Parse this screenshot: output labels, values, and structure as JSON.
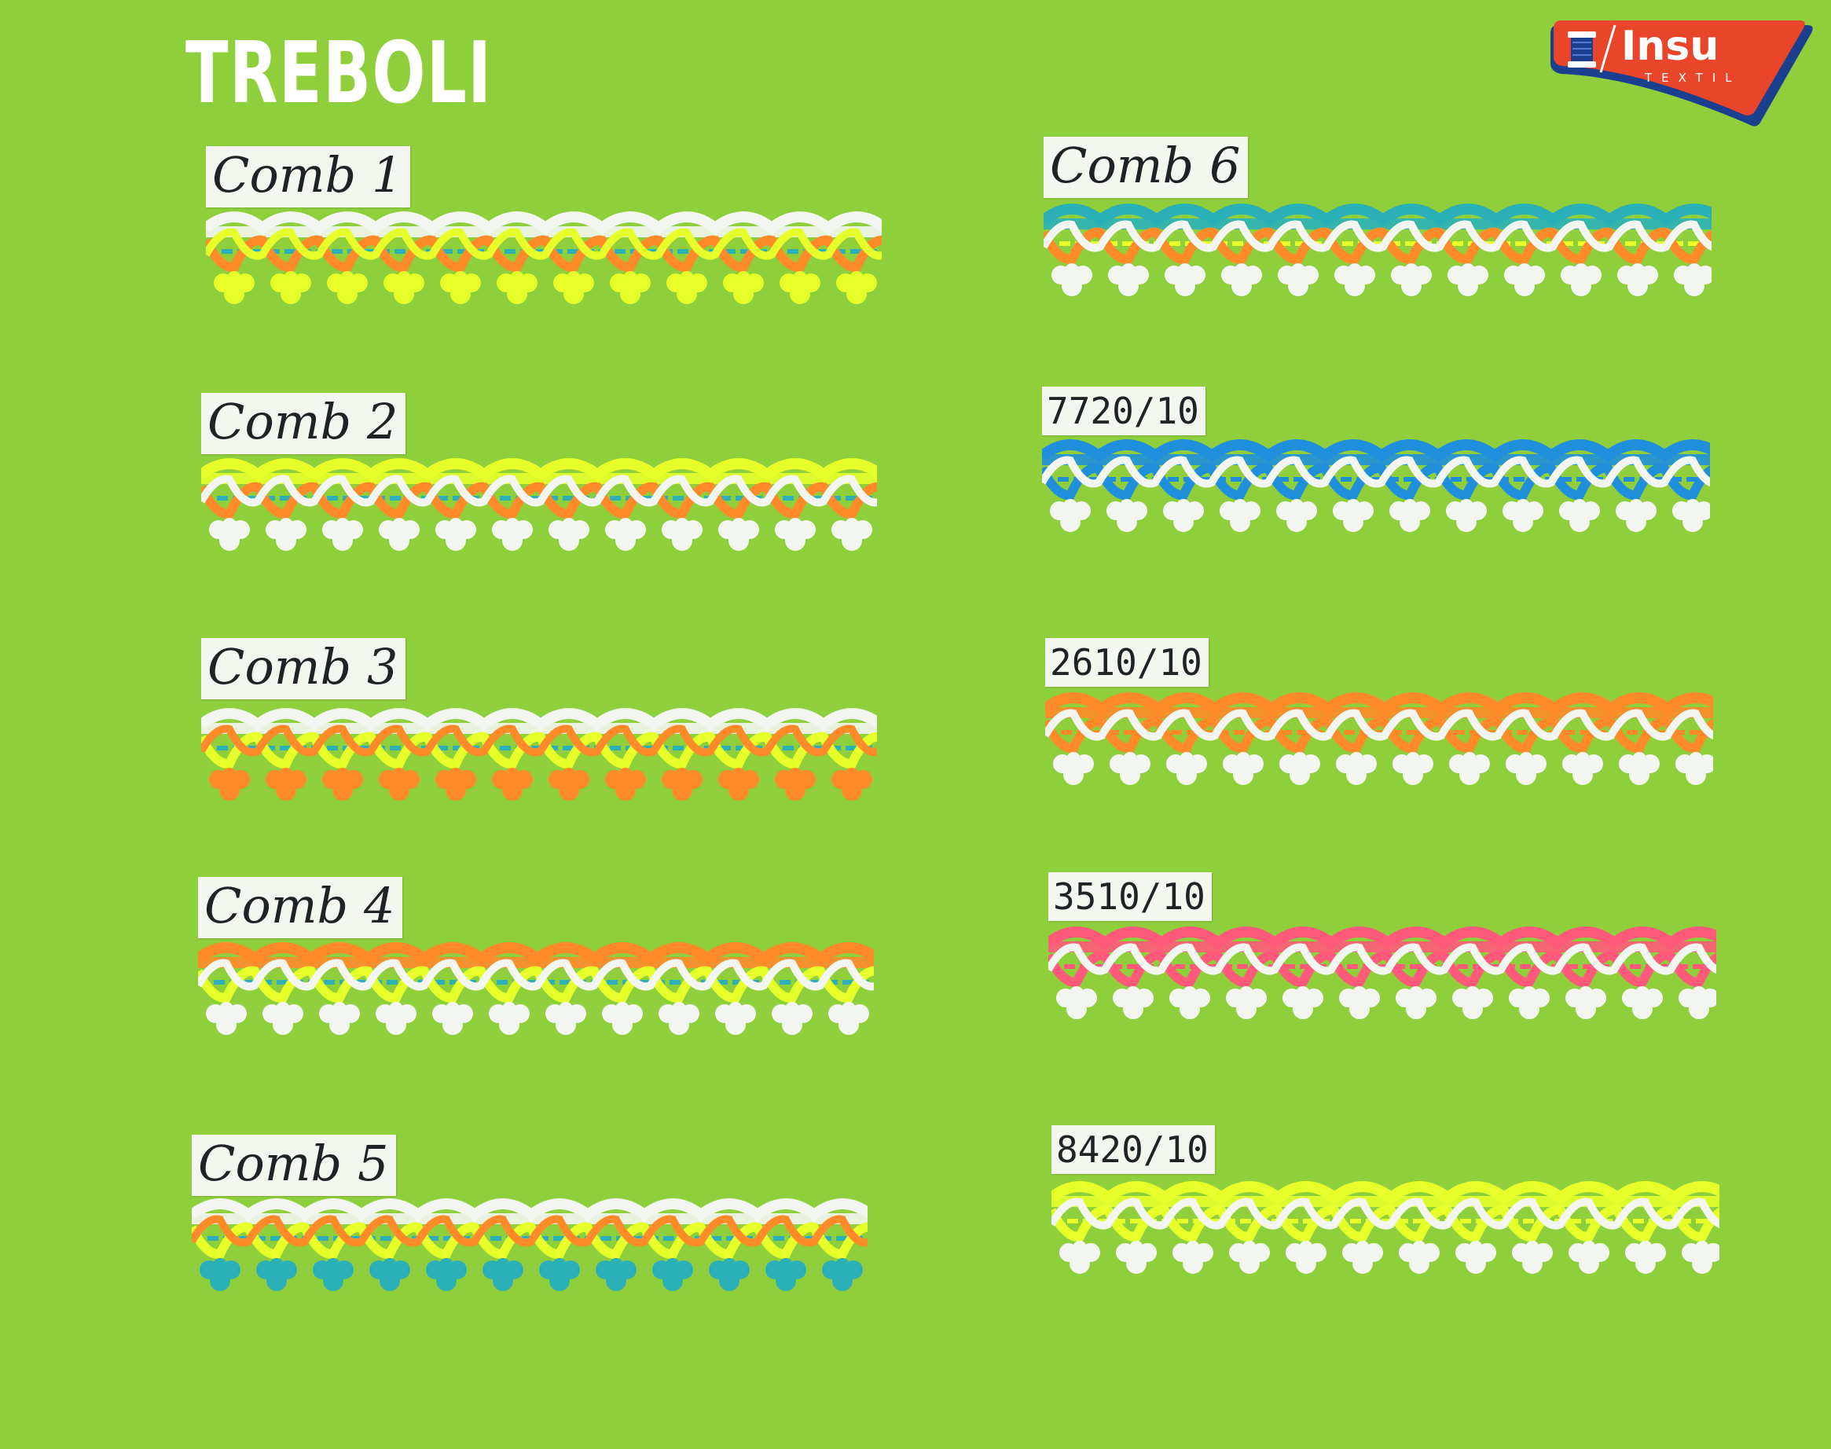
{
  "title": "TREBOLI",
  "logo": {
    "name": "Insu",
    "sub": "TEXTIL",
    "icon": "thread-spool-needle-icon"
  },
  "colors": {
    "background": "#8fcf3c",
    "white": "#f3f5f1",
    "lime": "#e6ff2a",
    "orange": "#ff8a2a",
    "teal": "#2bb0b8",
    "blue": "#1f8fdc",
    "pink": "#ff5a7a",
    "logo_red": "#e8452a",
    "logo_navy": "#1b3f8f"
  },
  "swatches": [
    {
      "label": "Comb 1",
      "colors": [
        "white",
        "lime",
        "orange",
        "teal",
        "lime"
      ]
    },
    {
      "label": "Comb 2",
      "colors": [
        "lime",
        "white",
        "orange",
        "teal",
        "white"
      ]
    },
    {
      "label": "Comb 3",
      "colors": [
        "white",
        "orange",
        "lime",
        "teal",
        "orange"
      ]
    },
    {
      "label": "Comb 4",
      "colors": [
        "orange",
        "white",
        "lime",
        "teal",
        "white"
      ]
    },
    {
      "label": "Comb 5",
      "colors": [
        "white",
        "orange",
        "lime",
        "teal",
        "teal"
      ]
    },
    {
      "label": "Comb 6",
      "colors": [
        "teal",
        "white",
        "orange",
        "lime",
        "white"
      ]
    },
    {
      "label": "7720/10",
      "colors": [
        "blue",
        "white",
        "blue",
        "blue",
        "white"
      ]
    },
    {
      "label": "2610/10",
      "colors": [
        "orange",
        "white",
        "orange",
        "orange",
        "white"
      ]
    },
    {
      "label": "3510/10",
      "colors": [
        "pink",
        "white",
        "pink",
        "pink",
        "white"
      ]
    },
    {
      "label": "8420/10",
      "colors": [
        "lime",
        "white",
        "lime",
        "lime",
        "white"
      ]
    }
  ]
}
